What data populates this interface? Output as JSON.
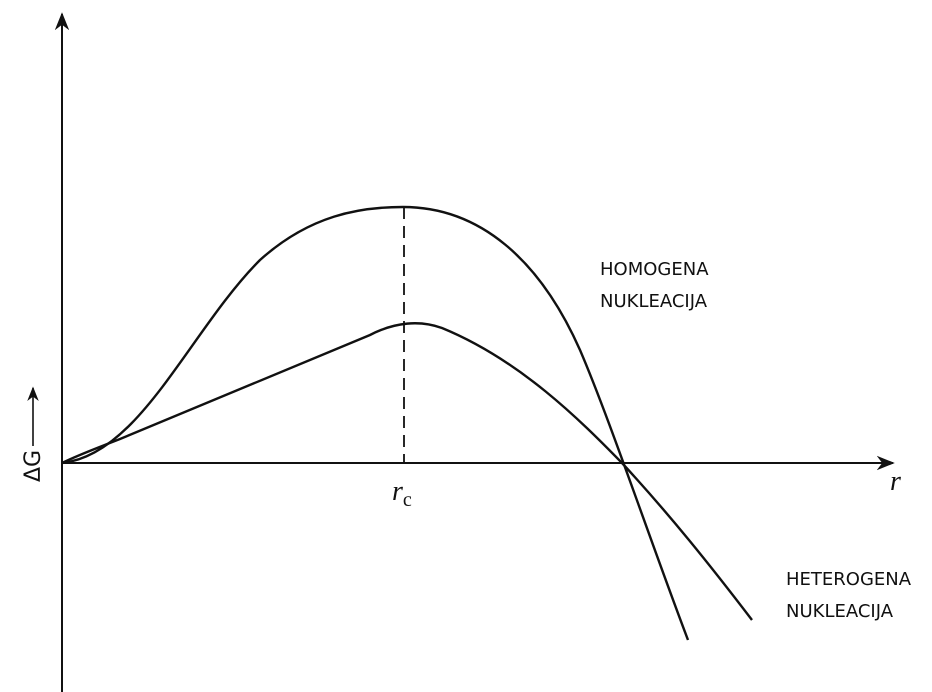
{
  "axes": {
    "y_label": "ΔG",
    "x_label": "r",
    "critical_label": {
      "base": "r",
      "sub": "c"
    }
  },
  "curves": [
    {
      "label_lines": [
        "HOMOGENA",
        "NUKLEACIJA"
      ]
    },
    {
      "label_lines": [
        "HETEROGENA",
        "NUKLEACIJA"
      ]
    }
  ]
}
